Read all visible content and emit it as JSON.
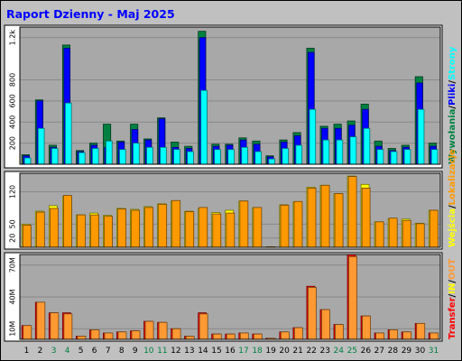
{
  "title": "Raport Dzienny -  Maj 2025",
  "colors": {
    "background": "#c0c0c0",
    "panel": "#ffffff",
    "plot_bg": "#a8a8a8",
    "title": "#0000ff",
    "visits": "#008040",
    "sites": "#0000ff",
    "files": "#00ffff",
    "pages": "#00c8ff",
    "entry": "#ff9900",
    "exit": "#ffff00",
    "kbytes": "#ff0000",
    "in": "#ffff00",
    "out": "#ff9933",
    "weekend_label": "#008040",
    "weekday_label": "#000000"
  },
  "legends": {
    "panel1": [
      {
        "text": "Wywołania",
        "color": "#008040"
      },
      {
        "text": "/",
        "color": "#000000"
      },
      {
        "text": "Pliki",
        "color": "#0000ff"
      },
      {
        "text": "/",
        "color": "#000000"
      },
      {
        "text": "Strony",
        "color": "#00ffff"
      }
    ],
    "panel2": [
      {
        "text": "Wejścia",
        "color": "#ffff00"
      },
      {
        "text": "/",
        "color": "#000000"
      },
      {
        "text": "Lokalizacje",
        "color": "#ff9900"
      }
    ],
    "panel3": [
      {
        "text": "Transfer",
        "color": "#ff0000"
      },
      {
        "text": "/",
        "color": "#000000"
      },
      {
        "text": "IN",
        "color": "#ffff00"
      },
      {
        "text": "/",
        "color": "#000000"
      },
      {
        "text": "OUT",
        "color": "#ff9933"
      }
    ]
  },
  "chart_data": {
    "type": "bar",
    "categories": [
      "1",
      "2",
      "3",
      "4",
      "5",
      "6",
      "7",
      "8",
      "9",
      "10",
      "11",
      "12",
      "13",
      "14",
      "15",
      "16",
      "17",
      "18",
      "19",
      "20",
      "21",
      "22",
      "23",
      "24",
      "25",
      "26",
      "27",
      "28",
      "29",
      "30",
      "31"
    ],
    "weekend_days": [
      "3",
      "4",
      "10",
      "11",
      "17",
      "18",
      "24",
      "25",
      "31"
    ],
    "panels": [
      {
        "id": "requests",
        "ymax": 1300,
        "ticks": [
          {
            "value": 200,
            "label": "200"
          },
          {
            "value": 400,
            "label": "400"
          },
          {
            "value": 600,
            "label": "600"
          },
          {
            "value": 800,
            "label": "800"
          },
          {
            "value": 1200,
            "label": "1.2k"
          }
        ],
        "series": [
          {
            "name": "Wywołania",
            "values": [
              90,
              610,
              180,
              1130,
              130,
              200,
              380,
              220,
              380,
              240,
              440,
              210,
              170,
              1260,
              190,
              190,
              250,
              220,
              80,
              230,
              300,
              1100,
              360,
              380,
              410,
              570,
              220,
              150,
              180,
              830,
              200
            ]
          },
          {
            "name": "Pliki",
            "values": [
              80,
              600,
              160,
              1100,
              120,
              180,
              160,
              210,
              330,
              230,
              430,
              160,
              150,
              1200,
              170,
              180,
              230,
              190,
              70,
              210,
              270,
              1060,
              340,
              340,
              370,
              520,
              170,
              130,
              160,
              770,
              170
            ]
          },
          {
            "name": "Strony",
            "values": [
              60,
              340,
              150,
              580,
              110,
              150,
              220,
              140,
              200,
              160,
              160,
              140,
              120,
              700,
              140,
              140,
              160,
              120,
              50,
              150,
              180,
              520,
              230,
              230,
              260,
              340,
              140,
              120,
              140,
              520,
              140
            ]
          }
        ]
      },
      {
        "id": "visits",
        "ymax": 160,
        "ticks": [
          {
            "value": 20,
            "label": "20"
          },
          {
            "value": 50,
            "label": "50"
          },
          {
            "value": 120,
            "label": "120"
          }
        ],
        "series": [
          {
            "name": "Wejścia",
            "values": [
              50,
              78,
              90,
              110,
              70,
              74,
              69,
              84,
              82,
              88,
              94,
              100,
              78,
              84,
              75,
              80,
              100,
              86,
              1,
              92,
              98,
              130,
              134,
              116,
              154,
              136,
              55,
              62,
              61,
              52,
              80
            ]
          },
          {
            "name": "Lokalizacje",
            "values": [
              48,
              76,
              84,
              112,
              70,
              70,
              67,
              83,
              80,
              86,
              93,
              101,
              77,
              86,
              72,
              74,
              100,
              86,
              1,
              91,
              99,
              128,
              134,
              116,
              153,
              128,
              55,
              63,
              58,
              51,
              80
            ]
          }
        ]
      },
      {
        "id": "transfer",
        "ymax": 80,
        "ticks": [
          {
            "value": 10,
            "label": "10M"
          },
          {
            "value": 40,
            "label": "40M"
          },
          {
            "value": 70,
            "label": "70M"
          }
        ],
        "series": [
          {
            "name": "Transfer",
            "values": [
              13,
              35,
              25,
              25,
              3,
              9,
              6,
              7,
              8,
              17,
              16,
              10,
              3,
              25,
              5,
              5,
              6,
              5,
              1,
              7,
              11,
              50,
              28,
              14,
              80,
              22,
              6,
              9,
              7,
              15,
              6
            ]
          },
          {
            "name": "OUT",
            "values": [
              13,
              35,
              25,
              24,
              3,
              9,
              6,
              7,
              8,
              17,
              16,
              10,
              3,
              24,
              5,
              5,
              6,
              5,
              1,
              7,
              11,
              49,
              28,
              14,
              78,
              22,
              6,
              9,
              7,
              15,
              6
            ]
          }
        ]
      }
    ]
  }
}
